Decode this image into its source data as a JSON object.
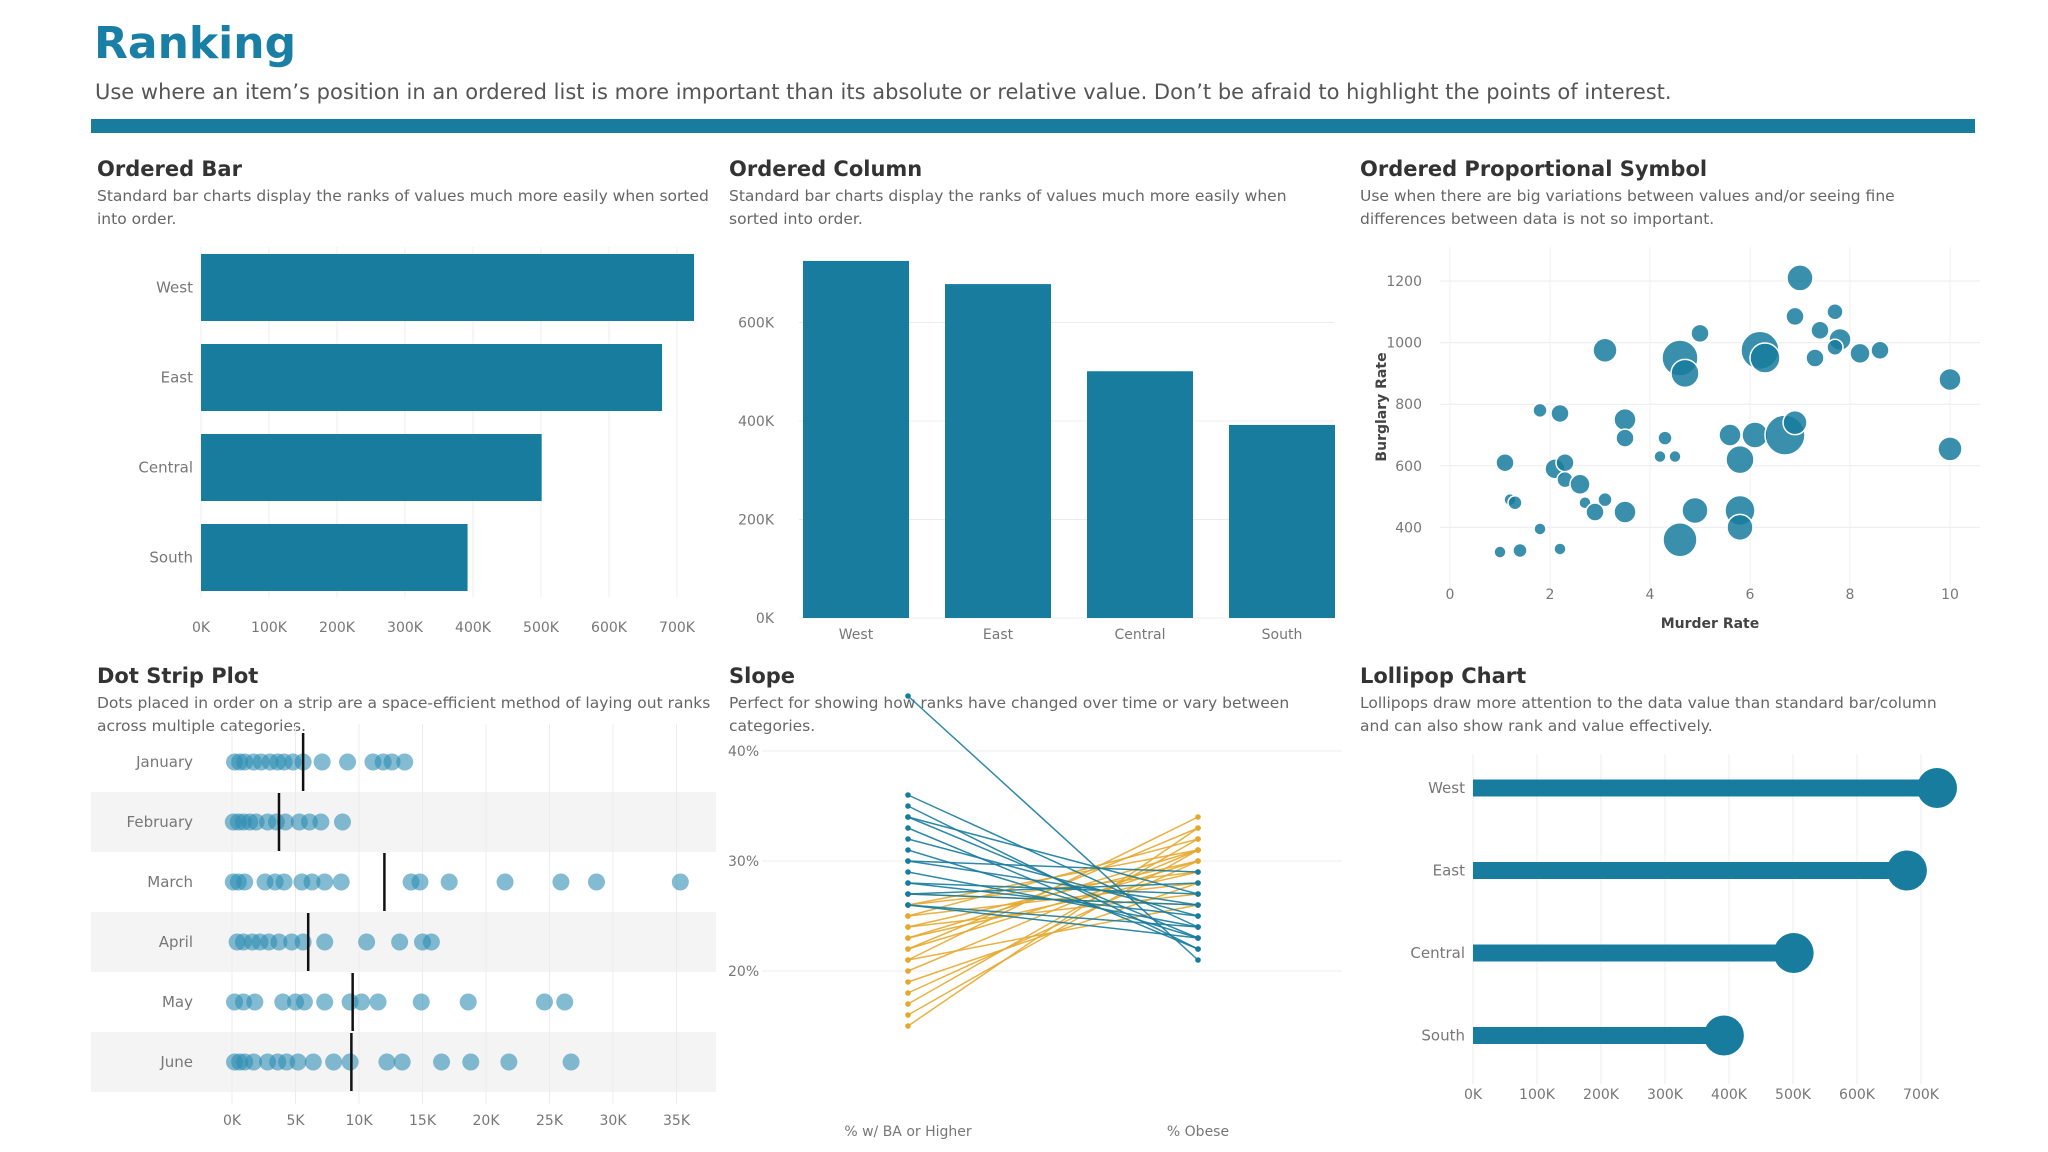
{
  "header": {
    "title": "Ranking",
    "subtitle": "Use where an item’s position in an ordered list is more important than its absolute or relative value. Don’t be afraid to highlight the points of interest."
  },
  "colors": {
    "primary": "#177c9d",
    "dot": "#2f8eb4",
    "orange": "#e5a82e",
    "band": "#f4f4f4"
  },
  "panels": {
    "ordered_bar": {
      "title": "Ordered Bar",
      "desc": "Standard bar charts display the ranks of values much more easily when sorted into order."
    },
    "ordered_column": {
      "title": "Ordered Column",
      "desc": "Standard bar charts display the ranks of values much more easily when sorted into order."
    },
    "proportional_symbol": {
      "title": "Ordered Proportional Symbol",
      "desc": "Use when there are big variations between values and/or seeing fine differences between data is not so important."
    },
    "dot_strip": {
      "title": "Dot Strip Plot",
      "desc": "Dots placed in order on a strip are a space-efficient method of laying out ranks across multiple categories."
    },
    "slope": {
      "title": "Slope",
      "desc": "Perfect for showing how ranks have changed over time or vary between categories."
    },
    "lollipop": {
      "title": "Lollipop Chart",
      "desc": "Lollipops draw more attention to the data value than standard bar/column and can also show rank and value effectively."
    }
  },
  "chart_data": [
    {
      "id": "ordered_bar",
      "type": "bar",
      "orientation": "horizontal",
      "categories": [
        "West",
        "East",
        "Central",
        "South"
      ],
      "values": [
        725000,
        678000,
        501000,
        392000
      ],
      "xlim": [
        0,
        750000
      ],
      "ticks": [
        "0K",
        "100K",
        "200K",
        "300K",
        "400K",
        "500K",
        "600K",
        "700K"
      ]
    },
    {
      "id": "ordered_column",
      "type": "bar",
      "orientation": "vertical",
      "categories": [
        "West",
        "East",
        "Central",
        "South"
      ],
      "values": [
        725000,
        678000,
        501000,
        392000
      ],
      "ylim": [
        0,
        750000
      ],
      "ticks": [
        "0K",
        "200K",
        "400K",
        "600K"
      ]
    },
    {
      "id": "proportional_symbol",
      "type": "scatter",
      "xlabel": "Murder Rate",
      "ylabel": "Burglary Rate",
      "xlim": [
        0,
        10.7
      ],
      "ylim": [
        200,
        1280
      ],
      "xticks": [
        "0",
        "2",
        "4",
        "6",
        "8",
        "10"
      ],
      "yticks": [
        "400",
        "600",
        "800",
        "1000",
        "1200"
      ],
      "points": [
        {
          "x": 7.0,
          "y": 1210,
          "s": 13
        },
        {
          "x": 7.7,
          "y": 1100,
          "s": 8
        },
        {
          "x": 6.9,
          "y": 1085,
          "s": 9
        },
        {
          "x": 5.0,
          "y": 1030,
          "s": 9
        },
        {
          "x": 7.4,
          "y": 1040,
          "s": 9
        },
        {
          "x": 7.8,
          "y": 1010,
          "s": 11
        },
        {
          "x": 3.1,
          "y": 975,
          "s": 12
        },
        {
          "x": 6.2,
          "y": 975,
          "s": 19
        },
        {
          "x": 6.3,
          "y": 950,
          "s": 15
        },
        {
          "x": 4.6,
          "y": 950,
          "s": 18
        },
        {
          "x": 4.7,
          "y": 900,
          "s": 14
        },
        {
          "x": 7.3,
          "y": 950,
          "s": 9
        },
        {
          "x": 8.2,
          "y": 965,
          "s": 10
        },
        {
          "x": 8.6,
          "y": 975,
          "s": 9
        },
        {
          "x": 7.7,
          "y": 985,
          "s": 8
        },
        {
          "x": 10.0,
          "y": 880,
          "s": 11
        },
        {
          "x": 10.0,
          "y": 655,
          "s": 12
        },
        {
          "x": 1.8,
          "y": 780,
          "s": 7
        },
        {
          "x": 2.2,
          "y": 770,
          "s": 9
        },
        {
          "x": 3.5,
          "y": 750,
          "s": 11
        },
        {
          "x": 3.5,
          "y": 690,
          "s": 9
        },
        {
          "x": 5.6,
          "y": 700,
          "s": 11
        },
        {
          "x": 6.1,
          "y": 700,
          "s": 13
        },
        {
          "x": 6.7,
          "y": 700,
          "s": 20
        },
        {
          "x": 6.9,
          "y": 740,
          "s": 12
        },
        {
          "x": 4.3,
          "y": 690,
          "s": 7
        },
        {
          "x": 4.2,
          "y": 630,
          "s": 6
        },
        {
          "x": 4.5,
          "y": 630,
          "s": 6
        },
        {
          "x": 5.8,
          "y": 620,
          "s": 14
        },
        {
          "x": 1.1,
          "y": 610,
          "s": 9
        },
        {
          "x": 2.1,
          "y": 590,
          "s": 10
        },
        {
          "x": 2.3,
          "y": 610,
          "s": 9
        },
        {
          "x": 2.3,
          "y": 555,
          "s": 8
        },
        {
          "x": 2.6,
          "y": 540,
          "s": 10
        },
        {
          "x": 3.1,
          "y": 490,
          "s": 7
        },
        {
          "x": 2.7,
          "y": 480,
          "s": 6
        },
        {
          "x": 1.2,
          "y": 490,
          "s": 6
        },
        {
          "x": 1.3,
          "y": 480,
          "s": 7
        },
        {
          "x": 2.9,
          "y": 450,
          "s": 9
        },
        {
          "x": 3.5,
          "y": 450,
          "s": 11
        },
        {
          "x": 4.9,
          "y": 455,
          "s": 13
        },
        {
          "x": 5.8,
          "y": 455,
          "s": 15
        },
        {
          "x": 5.8,
          "y": 400,
          "s": 13
        },
        {
          "x": 4.6,
          "y": 360,
          "s": 17
        },
        {
          "x": 1.8,
          "y": 395,
          "s": 6
        },
        {
          "x": 1.0,
          "y": 320,
          "s": 6
        },
        {
          "x": 1.4,
          "y": 325,
          "s": 7
        },
        {
          "x": 2.2,
          "y": 330,
          "s": 6
        }
      ]
    },
    {
      "id": "dot_strip",
      "type": "scatter",
      "categories": [
        "January",
        "February",
        "March",
        "April",
        "May",
        "June"
      ],
      "xlim": [
        0,
        36500
      ],
      "xticks": [
        "0K",
        "5K",
        "10K",
        "15K",
        "20K",
        "25K",
        "30K",
        "35K"
      ],
      "series": [
        {
          "name": "January",
          "values": [
            200,
            600,
            1000,
            1700,
            2300,
            3000,
            3600,
            4100,
            4800,
            5600,
            7100,
            9100,
            11100,
            11900,
            12600,
            13600
          ],
          "marker": 5600
        },
        {
          "name": "February",
          "values": [
            100,
            500,
            900,
            1400,
            1900,
            2800,
            3500,
            4200,
            5300,
            6100,
            7000,
            8700
          ],
          "marker": 3700
        },
        {
          "name": "March",
          "values": [
            100,
            500,
            1000,
            2600,
            3400,
            4100,
            5500,
            6300,
            7300,
            8600,
            14100,
            14800,
            17100,
            21500,
            25900,
            28700,
            35300
          ],
          "marker": 12000
        },
        {
          "name": "April",
          "values": [
            400,
            900,
            1600,
            2200,
            2900,
            3700,
            4700,
            5600,
            7300,
            10600,
            13200,
            15000,
            15700
          ],
          "marker": 6000
        },
        {
          "name": "May",
          "values": [
            200,
            900,
            1800,
            4000,
            5000,
            5700,
            7300,
            9300,
            10200,
            11500,
            14900,
            18600,
            24600,
            26200
          ],
          "marker": 9500
        },
        {
          "name": "June",
          "values": [
            200,
            600,
            1000,
            1700,
            2800,
            3600,
            4300,
            5200,
            6400,
            8000,
            9300,
            12200,
            13400,
            16500,
            18800,
            21800,
            26700
          ],
          "marker": 9400
        }
      ]
    },
    {
      "id": "slope",
      "type": "line",
      "categories": [
        "% w/ BA or Higher",
        "% Obese"
      ],
      "ylim": [
        15,
        47
      ],
      "yticks": [
        "20%",
        "30%",
        "40%"
      ],
      "series_blue": [
        [
          45,
          21
        ],
        [
          36,
          24
        ],
        [
          35,
          22
        ],
        [
          34,
          23
        ],
        [
          34,
          27
        ],
        [
          33,
          22
        ],
        [
          32,
          25
        ],
        [
          31,
          23
        ],
        [
          30,
          26
        ],
        [
          30,
          29
        ],
        [
          29,
          24
        ],
        [
          28,
          27
        ],
        [
          28,
          25
        ],
        [
          27,
          28
        ],
        [
          27,
          26
        ],
        [
          26,
          24
        ],
        [
          26,
          23
        ]
      ],
      "series_orange": [
        [
          27,
          26
        ],
        [
          26,
          29
        ],
        [
          26,
          31
        ],
        [
          25,
          28
        ],
        [
          25,
          32
        ],
        [
          24,
          30
        ],
        [
          24,
          27
        ],
        [
          23,
          31
        ],
        [
          23,
          29
        ],
        [
          22,
          33
        ],
        [
          22,
          30
        ],
        [
          21,
          34
        ],
        [
          21,
          26
        ],
        [
          20,
          31
        ],
        [
          19,
          28
        ],
        [
          18,
          30
        ],
        [
          17,
          32
        ],
        [
          16,
          31
        ],
        [
          15,
          33
        ]
      ]
    },
    {
      "id": "lollipop",
      "type": "bar",
      "orientation": "horizontal",
      "style": "lollipop",
      "categories": [
        "West",
        "East",
        "Central",
        "South"
      ],
      "values": [
        725000,
        678000,
        501000,
        392000
      ],
      "xlim": [
        0,
        750000
      ],
      "ticks": [
        "0K",
        "100K",
        "200K",
        "300K",
        "400K",
        "500K",
        "600K",
        "700K"
      ]
    }
  ]
}
